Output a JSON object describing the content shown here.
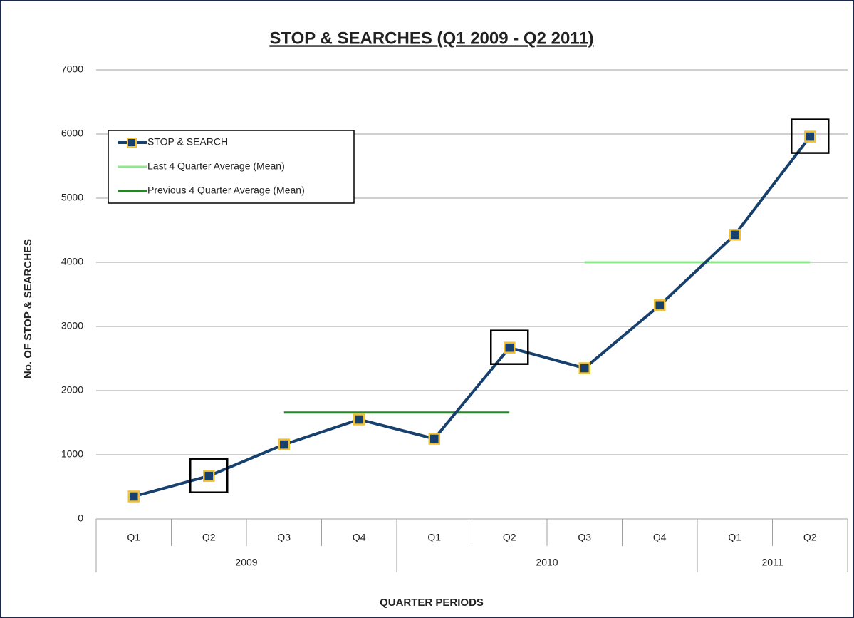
{
  "chart_data": {
    "type": "line",
    "title": "STOP & SEARCHES  (Q1 2009 - Q2 2011)",
    "x_label": "QUARTER PERIODS",
    "y_label": "No. OF STOP & SEARCHES",
    "categories": [
      "Q1",
      "Q2",
      "Q3",
      "Q4",
      "Q1",
      "Q2",
      "Q3",
      "Q4",
      "Q1",
      "Q2"
    ],
    "groups": [
      {
        "label": "2009",
        "span": 4
      },
      {
        "label": "2010",
        "span": 4
      },
      {
        "label": "2011",
        "span": 2
      }
    ],
    "series": [
      {
        "name": "STOP & SEARCH",
        "color": "#17406d",
        "marker_edge": "#f0c030",
        "markers": true,
        "values": [
          350,
          670,
          1160,
          1550,
          1250,
          2670,
          2350,
          3330,
          4430,
          5960
        ]
      },
      {
        "name": "Last 4 Quarter Average (Mean)",
        "color": "#8ee88e",
        "markers": false,
        "values": [
          null,
          null,
          null,
          null,
          null,
          null,
          4000,
          4000,
          4000,
          4000
        ]
      },
      {
        "name": "Previous 4 Quarter Average (Mean)",
        "color": "#1e8c1e",
        "markers": false,
        "values": [
          null,
          null,
          1658,
          1658,
          1658,
          1658,
          null,
          null,
          null,
          null
        ]
      }
    ],
    "highlight": [
      1,
      5,
      9
    ],
    "ylim": [
      0,
      7000
    ],
    "yticks": [
      0,
      1000,
      2000,
      3000,
      4000,
      5000,
      6000,
      7000
    ],
    "grid": true,
    "legend": "upper left"
  }
}
